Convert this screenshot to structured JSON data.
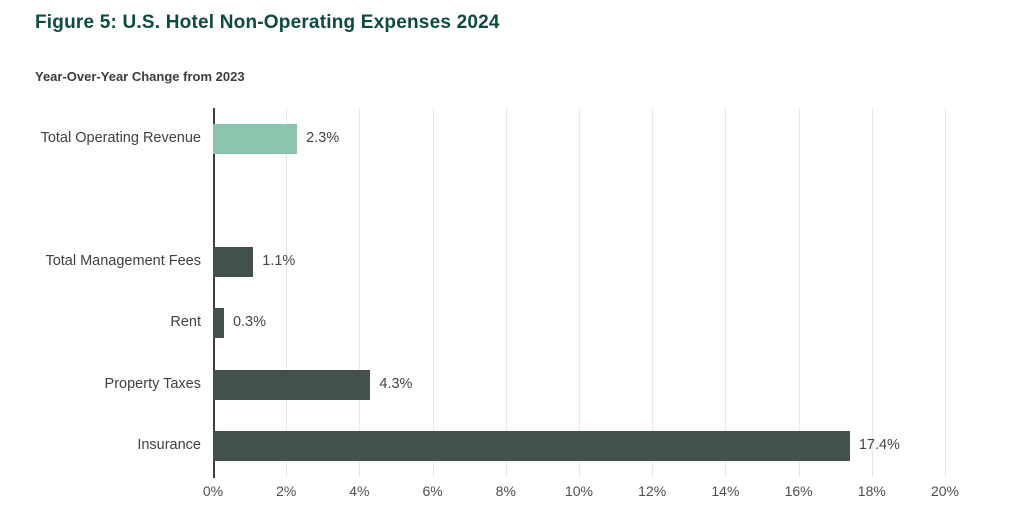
{
  "header": {
    "title": "Figure 5: U.S. Hotel Non-Operating Expenses 2024"
  },
  "chart_data": {
    "type": "bar",
    "orientation": "horizontal",
    "title": "Year-Over-Year Change from 2023",
    "categories": [
      "Total Operating Revenue",
      "",
      "Total Management Fees",
      "Rent",
      "Property Taxes",
      "Insurance"
    ],
    "values": [
      2.3,
      null,
      1.1,
      0.3,
      4.3,
      17.4
    ],
    "value_labels": [
      "2.3%",
      "",
      "1.1%",
      "0.3%",
      "4.3%",
      "17.4%"
    ],
    "bar_colors": [
      "#8cc3ac",
      null,
      "#42514c",
      "#42514c",
      "#42514c",
      "#42514c"
    ],
    "xlabel": "",
    "ylabel": "",
    "xlim": [
      0,
      20
    ],
    "x_tick_step": 2,
    "x_tick_labels": [
      "0%",
      "2%",
      "4%",
      "6%",
      "8%",
      "10%",
      "12%",
      "14%",
      "16%",
      "18%",
      "20%"
    ],
    "grid": true,
    "legend": false
  },
  "colors": {
    "title_teal": "#0d4b41",
    "bar_green": "#8cc3ac",
    "bar_dark": "#42514c",
    "gridline": "#e8e8e8",
    "axis": "#3f3f3f"
  }
}
